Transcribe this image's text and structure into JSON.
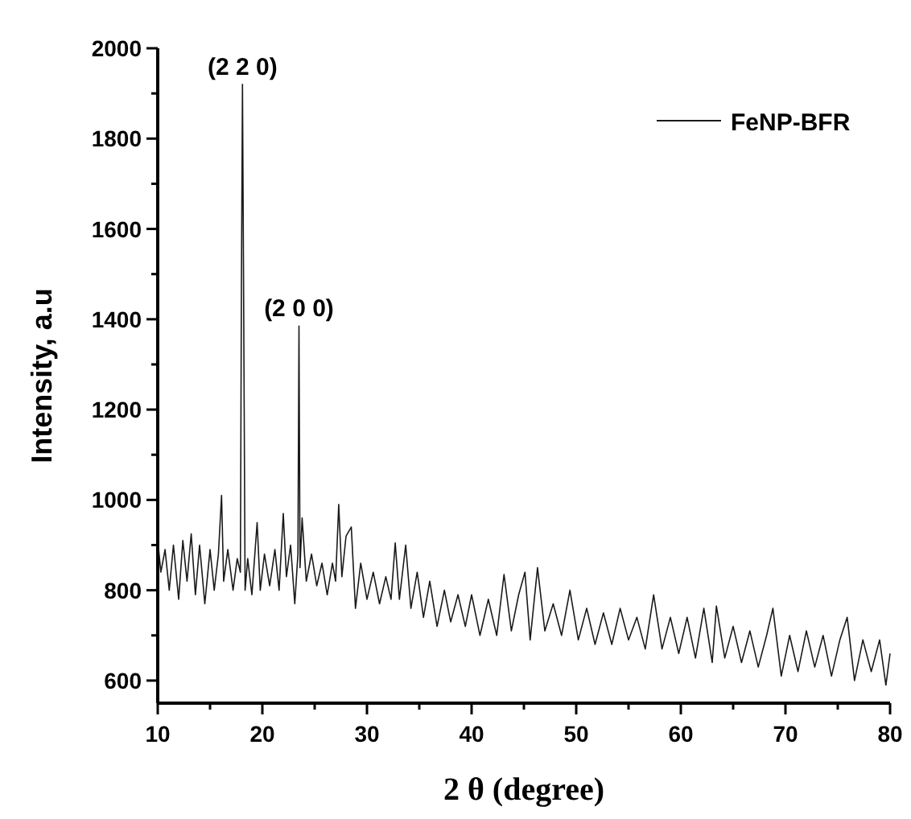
{
  "chart_data": {
    "type": "line",
    "xlabel": "2 θ (degree)",
    "ylabel": "Intensity, a.u",
    "xlim": [
      10,
      80
    ],
    "ylim": [
      550,
      2000
    ],
    "xticks": [
      10,
      {
        "value": 15,
        "label": null
      },
      20,
      {
        "value": 25,
        "label": null
      },
      30,
      {
        "value": 35,
        "label": null
      },
      40,
      {
        "value": 45,
        "label": null
      },
      50,
      {
        "value": 55,
        "label": null
      },
      60,
      {
        "value": 65,
        "label": null
      },
      70,
      {
        "value": 75,
        "label": null
      },
      80
    ],
    "yticks": [
      600,
      {
        "value": 700,
        "label": null
      },
      800,
      {
        "value": 900,
        "label": null
      },
      1000,
      {
        "value": 1100,
        "label": null
      },
      1200,
      {
        "value": 1300,
        "label": null
      },
      1400,
      {
        "value": 1500,
        "label": null
      },
      1600,
      {
        "value": 1700,
        "label": null
      },
      1800,
      {
        "value": 1900,
        "label": null
      },
      2000
    ],
    "legend": "top right",
    "grid": false,
    "marker": "none",
    "line_style": "solid",
    "annotations": [
      {
        "text": "(2 2 0)",
        "x": 18.1,
        "y": 1920
      },
      {
        "text": "(2 0 0)",
        "x": 23.5,
        "y": 1385
      }
    ],
    "series": [
      {
        "name": "FeNP-BFR",
        "color": "#1a1a1a",
        "x": [
          10,
          10.3,
          10.7,
          11.1,
          11.5,
          12,
          12.4,
          12.8,
          13.2,
          13.6,
          14,
          14.5,
          15,
          15.4,
          15.8,
          16.1,
          16.3,
          16.7,
          17.2,
          17.6,
          17.9,
          18.0,
          18.1,
          18.2,
          18.35,
          18.6,
          19,
          19.5,
          19.8,
          20.2,
          20.7,
          21.2,
          21.6,
          22.0,
          22.3,
          22.7,
          23.1,
          23.4,
          23.5,
          23.6,
          23.8,
          24.2,
          24.7,
          25.2,
          25.7,
          26.2,
          26.7,
          27.0,
          27.3,
          27.6,
          28.0,
          28.5,
          28.9,
          29.4,
          30,
          30.6,
          31.2,
          31.8,
          32.3,
          32.7,
          33.1,
          33.7,
          34.2,
          34.8,
          35.4,
          36,
          36.7,
          37.4,
          38,
          38.7,
          39.4,
          40,
          40.8,
          41.6,
          42.4,
          43.1,
          43.8,
          44.5,
          45.1,
          45.6,
          46.3,
          47,
          47.8,
          48.6,
          49.4,
          50.2,
          51,
          51.8,
          52.6,
          53.4,
          54.2,
          55,
          55.8,
          56.6,
          57.4,
          58.2,
          59,
          59.8,
          60.6,
          61.4,
          62.2,
          63,
          63.4,
          64.2,
          65,
          65.8,
          66.6,
          67.4,
          68.2,
          68.8,
          69.6,
          70.4,
          71.2,
          72,
          72.8,
          73.6,
          74.4,
          75.2,
          75.9,
          76.6,
          77.4,
          78.2,
          79,
          79.6,
          80
        ],
        "values": [
          910,
          840,
          890,
          800,
          900,
          780,
          910,
          820,
          925,
          790,
          900,
          770,
          890,
          800,
          880,
          1010,
          820,
          890,
          800,
          870,
          840,
          1480,
          1920,
          1500,
          800,
          870,
          790,
          950,
          800,
          880,
          810,
          890,
          800,
          970,
          830,
          900,
          770,
          880,
          1385,
          850,
          960,
          820,
          880,
          810,
          860,
          790,
          860,
          820,
          990,
          830,
          920,
          940,
          760,
          860,
          780,
          840,
          770,
          830,
          780,
          905,
          780,
          900,
          760,
          840,
          740,
          820,
          720,
          800,
          730,
          790,
          720,
          790,
          700,
          780,
          700,
          835,
          710,
          790,
          840,
          690,
          850,
          710,
          770,
          700,
          800,
          690,
          760,
          680,
          750,
          680,
          760,
          690,
          740,
          670,
          790,
          670,
          740,
          660,
          740,
          650,
          760,
          640,
          765,
          650,
          720,
          640,
          710,
          630,
          700,
          760,
          610,
          700,
          620,
          710,
          630,
          700,
          610,
          690,
          740,
          600,
          690,
          620,
          690,
          590,
          660
        ]
      }
    ]
  }
}
